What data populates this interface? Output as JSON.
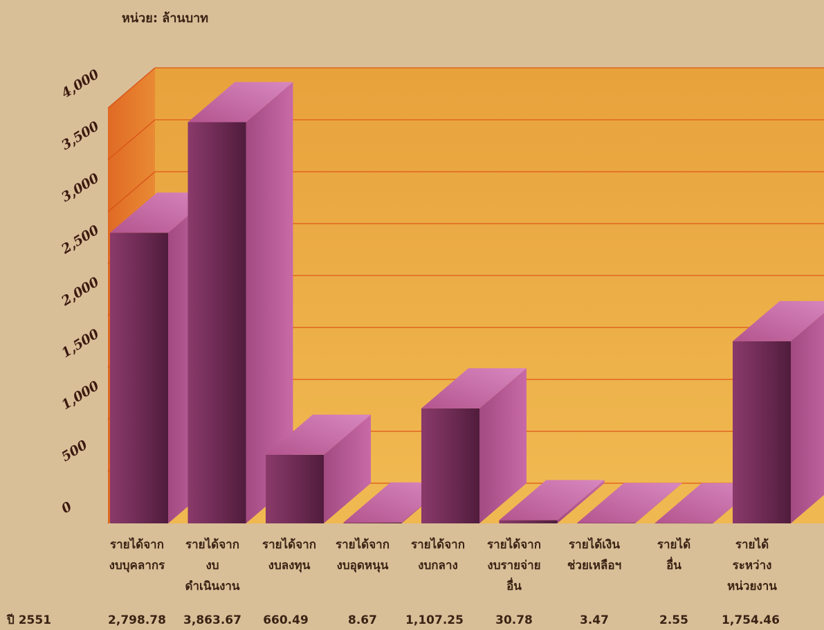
{
  "chart_data": {
    "type": "bar",
    "unit_label": "หน่วย: ล้านบาท",
    "year_label": "ปี 2551",
    "ylim": [
      0,
      4000
    ],
    "y_ticks": [
      "0",
      "500",
      "1,000",
      "1,500",
      "2,000",
      "2,500",
      "3,000",
      "3,500",
      "4,000"
    ],
    "categories": [
      [
        "รายได้จาก",
        "งบบุคลากร"
      ],
      [
        "รายได้จาก",
        "งบ",
        "ดำเนินงาน"
      ],
      [
        "รายได้จาก",
        "งบลงทุน"
      ],
      [
        "รายได้จาก",
        "งบอุดหนุน"
      ],
      [
        "รายได้จาก",
        "งบกลาง"
      ],
      [
        "รายได้จาก",
        "งบรายจ่าย",
        "อื่น"
      ],
      [
        "รายได้เงิน",
        "ช่วยเหลือฯ"
      ],
      [
        "รายได้",
        "อื่น"
      ],
      [
        "รายได้",
        "ระหว่าง",
        "หน่วยงาน"
      ]
    ],
    "values": [
      2798.78,
      3863.67,
      660.49,
      8.67,
      1107.25,
      30.78,
      3.47,
      2.55,
      1754.46
    ],
    "value_labels": [
      "2,798.78",
      "3,863.67",
      "660.49",
      "8.67",
      "1,107.25",
      "30.78",
      "3.47",
      "2.55",
      "1,754.46"
    ],
    "colors": {
      "bar_front": "#6b2a52",
      "bar_top": "#c0609a",
      "bar_side": "#a2457d",
      "back_wall": "#eaa23a",
      "side_wall": "#e2782a",
      "grid": "#e06420",
      "background": "#d9bf98"
    }
  }
}
